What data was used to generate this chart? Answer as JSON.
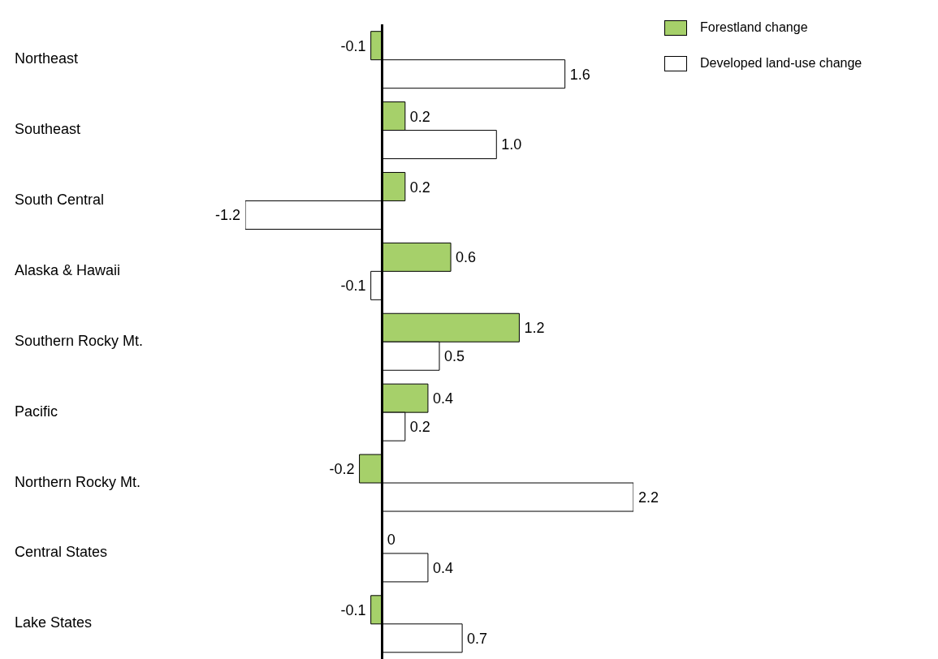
{
  "chart_data": {
    "type": "bar",
    "orientation": "horizontal",
    "categories": [
      "Northeast",
      "Southeast",
      "South Central",
      "Alaska & Hawaii",
      "Southern Rocky Mt.",
      "Pacific",
      "Northern Rocky Mt.",
      "Central States",
      "Lake States"
    ],
    "series": [
      {
        "name": "Forestland change",
        "color": "#a6d06a",
        "values": [
          -0.1,
          0.2,
          0.2,
          0.6,
          1.2,
          0.4,
          -0.2,
          0,
          -0.1
        ],
        "value_labels": [
          "-0.1",
          "0.2",
          "0.2",
          "0.6",
          "1.2",
          "0.4",
          "-0.2",
          "0",
          "-0.1"
        ]
      },
      {
        "name": "Developed land-use change",
        "color": "#ffffff",
        "values": [
          1.6,
          1,
          -1.2,
          -0.1,
          0.5,
          0.2,
          2.2,
          0.4,
          0.7
        ],
        "value_labels": [
          "1.6",
          "1.0",
          "-1.2",
          "-0.1",
          "0.5",
          "0.2",
          "2.2",
          "0.4",
          "0.7"
        ]
      }
    ],
    "xlim": [
      -1.2,
      2.2
    ],
    "tick_labels": "y",
    "grid": false,
    "legend": "top right"
  }
}
